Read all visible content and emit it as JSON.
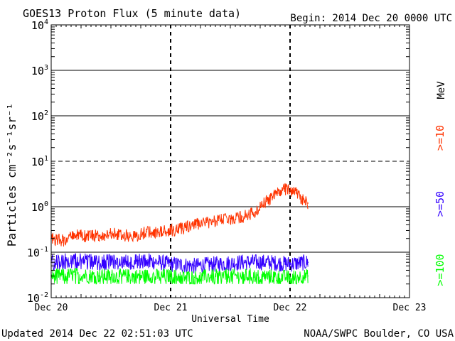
{
  "chart_data": {
    "type": "line",
    "title": "GOES13 Proton Flux (5 minute data)",
    "begin_label": "Begin: 2014 Dec 20 0000 UTC",
    "xlabel": "Universal Time",
    "ylabel": "Particles cm⁻²s⁻¹sr⁻¹",
    "y_scale": "log",
    "ylim": [
      0.01,
      10000
    ],
    "xlim_days": [
      0,
      3
    ],
    "x_ticks": [
      {
        "day": 0,
        "label": "Dec 20"
      },
      {
        "day": 1,
        "label": "Dec 21"
      },
      {
        "day": 2,
        "label": "Dec 22"
      },
      {
        "day": 3,
        "label": "Dec 23"
      }
    ],
    "y_ticks": [
      {
        "value": 10000,
        "base": "10",
        "exp": "4"
      },
      {
        "value": 1000,
        "base": "10",
        "exp": "3"
      },
      {
        "value": 100,
        "base": "10",
        "exp": "2"
      },
      {
        "value": 10,
        "base": "10",
        "exp": "1"
      },
      {
        "value": 1,
        "base": "10",
        "exp": "0"
      },
      {
        "value": 0.1,
        "base": "10",
        "exp": "-1"
      },
      {
        "value": 0.01,
        "base": "10",
        "exp": "-2"
      }
    ],
    "threshold_lines": [
      {
        "value": 10,
        "style": "dashed"
      }
    ],
    "legend_unit": "MeV",
    "series": [
      {
        "name": ">=10",
        "color": "#ff3300",
        "points": [
          [
            0.0,
            0.2
          ],
          [
            0.1,
            0.18
          ],
          [
            0.2,
            0.25
          ],
          [
            0.3,
            0.22
          ],
          [
            0.4,
            0.23
          ],
          [
            0.5,
            0.26
          ],
          [
            0.6,
            0.24
          ],
          [
            0.7,
            0.22
          ],
          [
            0.8,
            0.28
          ],
          [
            0.9,
            0.27
          ],
          [
            1.0,
            0.3
          ],
          [
            1.1,
            0.33
          ],
          [
            1.2,
            0.4
          ],
          [
            1.3,
            0.45
          ],
          [
            1.4,
            0.5
          ],
          [
            1.5,
            0.55
          ],
          [
            1.6,
            0.6
          ],
          [
            1.7,
            0.75
          ],
          [
            1.8,
            1.3
          ],
          [
            1.85,
            1.6
          ],
          [
            1.9,
            2.0
          ],
          [
            1.95,
            2.5
          ],
          [
            2.0,
            2.3
          ],
          [
            2.05,
            2.0
          ],
          [
            2.1,
            1.5
          ],
          [
            2.15,
            1.2
          ]
        ]
      },
      {
        "name": ">=50",
        "color": "#3300ff",
        "points": [
          [
            0.0,
            0.06
          ],
          [
            0.2,
            0.065
          ],
          [
            0.4,
            0.06
          ],
          [
            0.6,
            0.06
          ],
          [
            0.8,
            0.065
          ],
          [
            1.0,
            0.055
          ],
          [
            1.2,
            0.05
          ],
          [
            1.4,
            0.055
          ],
          [
            1.6,
            0.06
          ],
          [
            1.8,
            0.06
          ],
          [
            2.0,
            0.055
          ],
          [
            2.15,
            0.06
          ]
        ]
      },
      {
        "name": ">=100",
        "color": "#00ff00",
        "points": [
          [
            0.0,
            0.03
          ],
          [
            0.2,
            0.032
          ],
          [
            0.4,
            0.03
          ],
          [
            0.6,
            0.03
          ],
          [
            0.8,
            0.03
          ],
          [
            1.0,
            0.03
          ],
          [
            1.2,
            0.028
          ],
          [
            1.4,
            0.03
          ],
          [
            1.6,
            0.03
          ],
          [
            1.8,
            0.03
          ],
          [
            2.0,
            0.028
          ],
          [
            2.15,
            0.03
          ]
        ]
      }
    ]
  },
  "footer": {
    "updated": "Updated 2014 Dec 22 02:51:03 UTC",
    "source": "NOAA/SWPC Boulder, CO USA"
  }
}
